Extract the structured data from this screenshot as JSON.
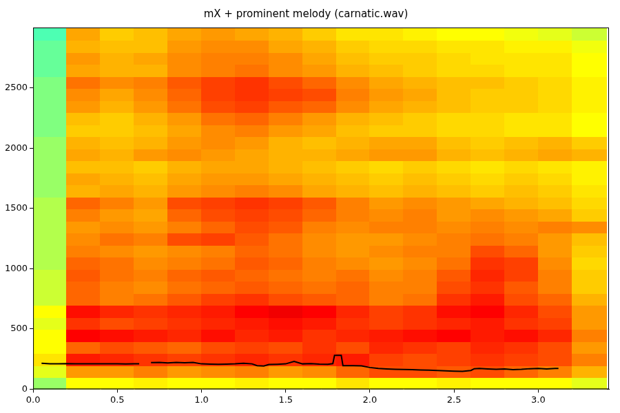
{
  "chart_data": {
    "type": "spectrogram",
    "title": "mX + prominent melody (carnatic.wav)",
    "xlim": [
      0,
      3.42
    ],
    "ylim": [
      0,
      3000
    ],
    "xticks": [
      {
        "value": 0,
        "label": "0.0"
      },
      0.5,
      {
        "value": 1,
        "label": "1.0"
      },
      1.5,
      {
        "value": 2,
        "label": "2.0"
      },
      2.5,
      {
        "value": 3,
        "label": "3.0"
      }
    ],
    "yticks": [
      0,
      500,
      1000,
      1500,
      2000,
      2500
    ],
    "grid": false,
    "cells": {
      "x_edges": [
        0,
        0.2,
        0.4,
        0.6,
        0.8,
        1.0,
        1.2,
        1.4,
        1.6,
        1.8,
        2.0,
        2.2,
        2.4,
        2.6,
        2.8,
        3.0,
        3.2,
        3.4
      ],
      "y_edges": [
        0,
        100,
        200,
        300,
        400,
        500,
        600,
        700,
        800,
        900,
        1000,
        1100,
        1200,
        1300,
        1400,
        1500,
        1600,
        1700,
        1800,
        1900,
        2000,
        2100,
        2200,
        2300,
        2400,
        2500,
        2600,
        2700,
        2800,
        2900,
        3000
      ],
      "zlim": [
        -100,
        -20
      ],
      "values": [
        [
          -58,
          -50,
          -50,
          -49,
          -50,
          -50,
          -49,
          -50,
          -50,
          -48,
          -50,
          -50,
          -49,
          -50,
          -50,
          -50,
          -52
        ],
        [
          -52,
          -42,
          -42,
          -40,
          -42,
          -41,
          -40,
          -42,
          -41,
          -38,
          -36,
          -36,
          -37,
          -36,
          -38,
          -40,
          -44
        ],
        [
          -48,
          -32,
          -33,
          -34,
          -35,
          -34,
          -33,
          -34,
          -33,
          -32,
          -35,
          -36,
          -35,
          -34,
          -35,
          -36,
          -40
        ],
        [
          -50,
          -38,
          -36,
          -37,
          -38,
          -36,
          -35,
          -36,
          -34,
          -36,
          -33,
          -34,
          -35,
          -33,
          -34,
          -36,
          -42
        ],
        [
          -50,
          -30,
          -31,
          -32,
          -33,
          -31,
          -33,
          -32,
          -34,
          -33,
          -32,
          -31,
          -30,
          -32,
          -31,
          -33,
          -40
        ],
        [
          -52,
          -34,
          -36,
          -35,
          -34,
          -33,
          -32,
          -31,
          -32,
          -34,
          -35,
          -34,
          -33,
          -32,
          -34,
          -35,
          -42
        ],
        [
          -50,
          -31,
          -33,
          -34,
          -33,
          -32,
          -30,
          -29,
          -30,
          -33,
          -35,
          -34,
          -31,
          -30,
          -33,
          -36,
          -42
        ],
        [
          -54,
          -38,
          -40,
          -39,
          -37,
          -35,
          -34,
          -36,
          -37,
          -38,
          -40,
          -39,
          -34,
          -32,
          -36,
          -38,
          -44
        ],
        [
          -54,
          -38,
          -40,
          -41,
          -39,
          -38,
          -37,
          -38,
          -39,
          -38,
          -40,
          -40,
          -36,
          -34,
          -37,
          -40,
          -46
        ],
        [
          -54,
          -37,
          -39,
          -40,
          -38,
          -37,
          -38,
          -39,
          -40,
          -39,
          -41,
          -40,
          -37,
          -33,
          -35,
          -40,
          -46
        ],
        [
          -56,
          -38,
          -39,
          -41,
          -40,
          -39,
          -37,
          -38,
          -40,
          -41,
          -42,
          -41,
          -39,
          -34,
          -35,
          -41,
          -47
        ],
        [
          -56,
          -40,
          -41,
          -42,
          -41,
          -40,
          -38,
          -39,
          -41,
          -42,
          -41,
          -40,
          -40,
          -36,
          -38,
          -42,
          -46
        ],
        [
          -56,
          -41,
          -39,
          -40,
          -36,
          -35,
          -37,
          -39,
          -41,
          -42,
          -42,
          -41,
          -40,
          -39,
          -40,
          -42,
          -45
        ],
        [
          -56,
          -42,
          -41,
          -42,
          -40,
          -38,
          -36,
          -37,
          -40,
          -41,
          -40,
          -40,
          -41,
          -40,
          -41,
          -40,
          -41
        ],
        [
          -56,
          -40,
          -42,
          -43,
          -38,
          -36,
          -35,
          -36,
          -38,
          -40,
          -41,
          -40,
          -42,
          -41,
          -42,
          -43,
          -46
        ],
        [
          -56,
          -38,
          -40,
          -42,
          -36,
          -35,
          -34,
          -35,
          -37,
          -40,
          -42,
          -41,
          -42,
          -43,
          -44,
          -45,
          -47
        ],
        [
          -58,
          -44,
          -43,
          -44,
          -42,
          -41,
          -40,
          -41,
          -43,
          -44,
          -45,
          -44,
          -45,
          -46,
          -45,
          -46,
          -48
        ],
        [
          -58,
          -43,
          -44,
          -45,
          -43,
          -42,
          -42,
          -43,
          -44,
          -45,
          -46,
          -45,
          -46,
          -47,
          -46,
          -47,
          -49
        ],
        [
          -58,
          -45,
          -45,
          -46,
          -44,
          -43,
          -43,
          -44,
          -45,
          -46,
          -47,
          -46,
          -47,
          -48,
          -47,
          -48,
          -49
        ],
        [
          -58,
          -43,
          -44,
          -42,
          -41,
          -42,
          -43,
          -44,
          -44,
          -43,
          -42,
          -42,
          -44,
          -45,
          -44,
          -43,
          -44
        ],
        [
          -58,
          -44,
          -45,
          -44,
          -42,
          -41,
          -42,
          -44,
          -45,
          -44,
          -43,
          -43,
          -45,
          -46,
          -45,
          -44,
          -46
        ],
        [
          -60,
          -46,
          -46,
          -45,
          -43,
          -41,
          -40,
          -42,
          -43,
          -45,
          -46,
          -46,
          -47,
          -47,
          -48,
          -48,
          -50
        ],
        [
          -60,
          -45,
          -46,
          -44,
          -42,
          -39,
          -38,
          -40,
          -42,
          -44,
          -45,
          -46,
          -47,
          -47,
          -48,
          -48,
          -50
        ],
        [
          -60,
          -42,
          -44,
          -42,
          -39,
          -36,
          -35,
          -37,
          -38,
          -41,
          -43,
          -44,
          -45,
          -46,
          -46,
          -47,
          -49
        ],
        [
          -60,
          -41,
          -43,
          -41,
          -38,
          -35,
          -34,
          -35,
          -36,
          -40,
          -42,
          -43,
          -45,
          -46,
          -46,
          -47,
          -49
        ],
        [
          -60,
          -39,
          -41,
          -40,
          -37,
          -35,
          -34,
          -36,
          -38,
          -41,
          -43,
          -44,
          -45,
          -45,
          -46,
          -47,
          -49
        ],
        [
          -62,
          -43,
          -44,
          -44,
          -41,
          -40,
          -39,
          -41,
          -42,
          -44,
          -45,
          -46,
          -47,
          -47,
          -48,
          -48,
          -50
        ],
        [
          -62,
          -42,
          -44,
          -43,
          -41,
          -40,
          -40,
          -41,
          -43,
          -45,
          -46,
          -46,
          -47,
          -48,
          -48,
          -48,
          -50
        ],
        [
          -62,
          -44,
          -45,
          -45,
          -42,
          -41,
          -41,
          -43,
          -44,
          -46,
          -47,
          -47,
          -48,
          -48,
          -49,
          -49,
          -51
        ],
        [
          -64,
          -43,
          -46,
          -45,
          -43,
          -42,
          -43,
          -44,
          -46,
          -48,
          -48,
          -49,
          -50,
          -50,
          -51,
          -52,
          -54
        ]
      ]
    },
    "series": [
      {
        "type": "line",
        "color": "#000000",
        "x": [
          0.05,
          0.1,
          0.15,
          0.2,
          0.25,
          0.3,
          0.35,
          0.4,
          0.45,
          0.5,
          0.55,
          0.6,
          0.63,
          0.65,
          0.7,
          0.75,
          0.8,
          0.85,
          0.9,
          0.95,
          1.0,
          1.05,
          1.1,
          1.15,
          1.2,
          1.25,
          1.3,
          1.33,
          1.37,
          1.4,
          1.45,
          1.5,
          1.55,
          1.6,
          1.65,
          1.7,
          1.75,
          1.78,
          1.79,
          1.83,
          1.84,
          1.9,
          1.95,
          2.0,
          2.05,
          2.1,
          2.15,
          2.2,
          2.25,
          2.3,
          2.35,
          2.4,
          2.45,
          2.5,
          2.55,
          2.6,
          2.62,
          2.65,
          2.7,
          2.75,
          2.8,
          2.85,
          2.9,
          2.95,
          3.0,
          3.05,
          3.1,
          3.12
        ],
        "values": [
          215,
          210,
          210,
          212,
          210,
          210,
          211,
          210,
          210,
          210,
          209,
          210,
          210,
          null,
          220,
          222,
          218,
          222,
          219,
          222,
          210,
          208,
          207,
          208,
          210,
          215,
          210,
          195,
          192,
          205,
          207,
          210,
          230,
          210,
          212,
          208,
          207,
          212,
          280,
          280,
          195,
          195,
          193,
          180,
          172,
          168,
          165,
          163,
          162,
          160,
          158,
          155,
          152,
          150,
          148,
          155,
          170,
          172,
          168,
          165,
          168,
          162,
          165,
          170,
          172,
          168,
          172,
          172
        ]
      }
    ]
  }
}
